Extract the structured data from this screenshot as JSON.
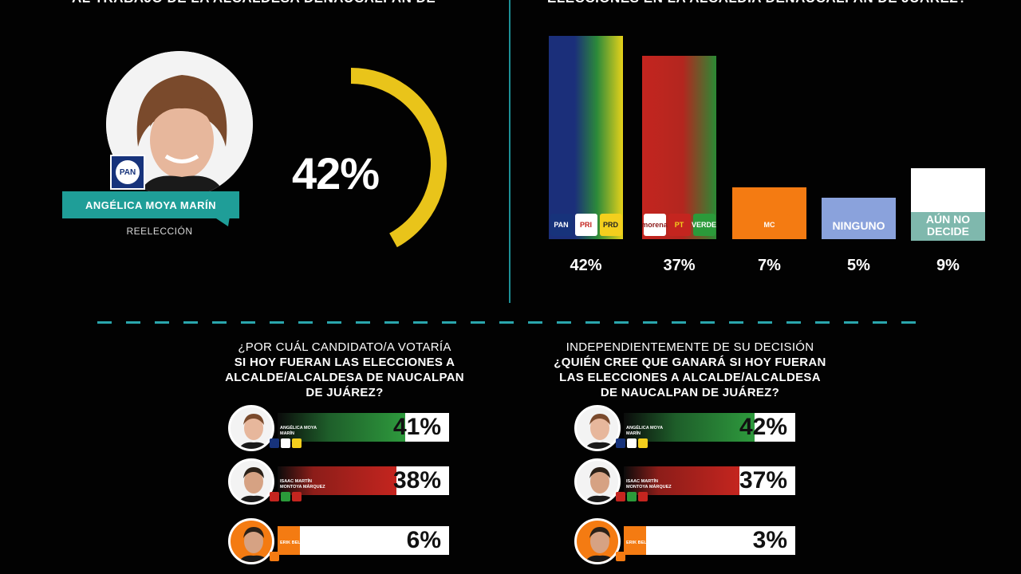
{
  "header": {
    "left_title_prefix": "AL TRABAJO DE LA ALCALDESA DE ",
    "left_title_highlight": "NAUCALPAN DE",
    "right_title_prefix": "ELECCIONES EN LA ALCALDÍA DE ",
    "right_title_highlight": "NAUCALPAN DE JUÁREZ?"
  },
  "approval": {
    "candidate_name": "ANGÉLICA MOYA MARÍN",
    "subtitle": "REELECCIÓN",
    "party_logo": "PAN",
    "percent_label": "42%",
    "percent_value": 42,
    "gauge_color": "#e9c41a"
  },
  "chart_data": [
    {
      "type": "bar",
      "categories": [
        "PAN-PRI-PRD",
        "MORENA-PT-VERDE",
        "MOVIMIENTO CIUDADANO",
        "NINGUNO",
        "AÚN NO DECIDE"
      ],
      "values": [
        42,
        37,
        7,
        5,
        9
      ],
      "value_labels": [
        "42%",
        "37%",
        "7%",
        "5%",
        "9%"
      ],
      "bar_logos": [
        [
          "PAN",
          "PRI",
          "PRD"
        ],
        [
          "morena",
          "PT",
          "VERDE"
        ],
        [
          "MC"
        ],
        [],
        []
      ],
      "bar_text": [
        "",
        "",
        "",
        "NINGUNO",
        "AÚN NO DECIDE"
      ],
      "colors": [
        "#1b2f7a",
        "#c4251f",
        "#f47b12",
        "#8aa2dc",
        "#ffffff"
      ]
    },
    {
      "type": "bar",
      "orientation": "horizontal",
      "title_line1": "¿POR CUÁL CANDIDATO/A VOTARÍA",
      "title_bold": [
        "SI HOY FUERAN LAS ELECCIONES A",
        "ALCALDE/ALCALDESA DE NAUCALPAN",
        "DE JUÁREZ?"
      ],
      "categories": [
        "ANGÉLICA MOYA MARÍN",
        "ISAAC MARTÍN MONTOYA MÁRQUEZ",
        "ERIK BELLER"
      ],
      "values": [
        41,
        38,
        6
      ],
      "value_labels": [
        "41%",
        "38%",
        "6%"
      ]
    },
    {
      "type": "bar",
      "orientation": "horizontal",
      "title_line1": "INDEPENDIENTEMENTE DE SU DECISIÓN",
      "title_bold": [
        "¿QUIÉN CREE QUE GANARÁ SI HOY FUERAN",
        "LAS ELECCIONES A ALCALDE/ALCALDESA",
        "DE NAUCALPAN DE JUÁREZ?"
      ],
      "categories": [
        "ANGÉLICA MOYA MARÍN",
        "ISAAC MARTÍN MONTOYA MÁRQUEZ",
        "ERIK BELLER"
      ],
      "values": [
        42,
        37,
        3
      ],
      "value_labels": [
        "42%",
        "37%",
        "3%"
      ]
    }
  ],
  "candidates": {
    "names_short": [
      "ANGÉLICA MOYA MARÍN",
      "ISAAC MARTÍN MONTOYA MÁRQUEZ",
      "ERIK BELLER"
    ],
    "names_display": [
      [
        "ANGÉLICA MOYA",
        "MARÍN"
      ],
      [
        "ISAAC MARTÍN",
        "MONTOYA MÁRQUEZ"
      ],
      [
        "ERIK BELLER"
      ]
    ],
    "bar_colors": [
      "#2e9a3d",
      "#c4251f",
      "#f47b12"
    ]
  }
}
